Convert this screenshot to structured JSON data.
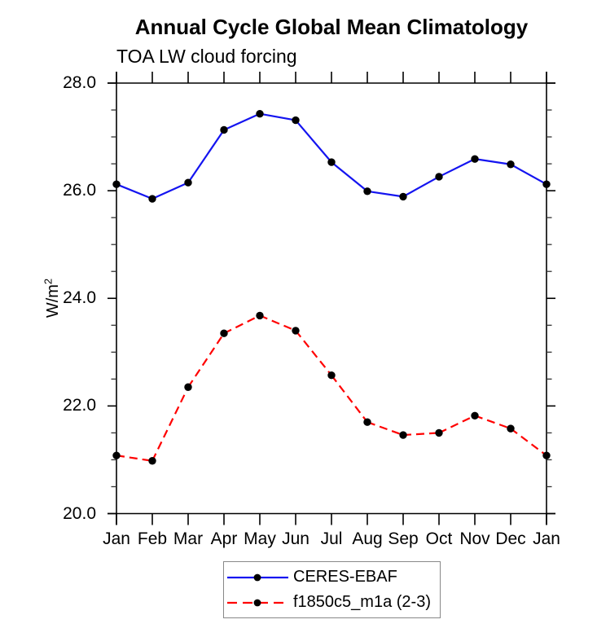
{
  "chart_data": {
    "type": "line",
    "title": "Annual Cycle Global Mean Climatology",
    "subtitle": "TOA LW cloud forcing",
    "ylabel": {
      "base": "W/m",
      "sup": "2"
    },
    "categories": [
      "Jan",
      "Feb",
      "Mar",
      "Apr",
      "May",
      "Jun",
      "Jul",
      "Aug",
      "Sep",
      "Oct",
      "Nov",
      "Dec",
      "Jan"
    ],
    "y_axis": {
      "min": 20.0,
      "max": 28.0,
      "major_tick_values": [
        20.0,
        22.0,
        24.0,
        26.0,
        28.0
      ],
      "major_tick_labels": [
        "20.0",
        "22.0",
        "24.0",
        "26.0",
        "28.0"
      ],
      "minor_tick_step": 0.5
    },
    "grid": "off",
    "legend_position": "bottom-center",
    "series": [
      {
        "name": "CERES-EBAF",
        "line_style": "solid",
        "line_color": "#1414f0",
        "marker": "filled-circle",
        "marker_color": "#000000",
        "values": [
          26.12,
          25.85,
          26.15,
          27.13,
          27.43,
          27.31,
          26.53,
          25.99,
          25.89,
          26.26,
          26.59,
          26.49,
          26.12
        ]
      },
      {
        "name": "f1850c5_m1a (2-3)",
        "line_style": "dashed",
        "line_color": "#ff0000",
        "marker": "filled-circle",
        "marker_color": "#000000",
        "values": [
          21.08,
          20.98,
          22.35,
          23.35,
          23.68,
          23.4,
          22.57,
          21.7,
          21.46,
          21.5,
          21.82,
          21.58,
          21.08
        ]
      }
    ]
  }
}
